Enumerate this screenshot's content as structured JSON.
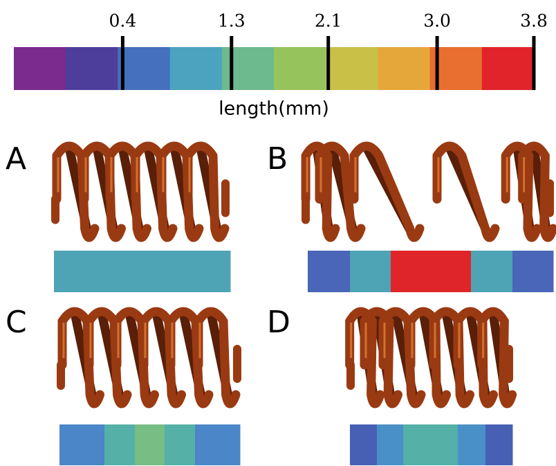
{
  "colorbar": {
    "label": "length(mm)",
    "xlim": [
      -0.5,
      3.8
    ],
    "ticks": [
      0.4,
      1.3,
      2.1,
      {
        "value": 3,
        "label": "3.0"
      },
      3.8
    ],
    "colors": [
      "#7b2a8e",
      "#4e3e9c",
      "#4470bd",
      "#4ba3bf",
      "#6cba8e",
      "#97c35c",
      "#c9c048",
      "#e6a73a",
      "#e86f30",
      "#e0242a"
    ]
  },
  "panels": [
    {
      "label": "A",
      "segments": [
        "#4ea3b5"
      ]
    },
    {
      "label": "B",
      "segments": [
        "#4a66b8",
        "#4ea3b5",
        "#e0252a",
        "#4ea3b5",
        "#4a66b8"
      ]
    },
    {
      "label": "C",
      "segments": [
        "#4a86c8",
        "#55b0a8",
        "#78bd84",
        "#55b0a8",
        "#4a86c8"
      ]
    },
    {
      "label": "D",
      "segments": [
        "#4760b4",
        "#4a90c8",
        "#55b0a8",
        "#4a90c8",
        "#4760b4"
      ]
    }
  ]
}
